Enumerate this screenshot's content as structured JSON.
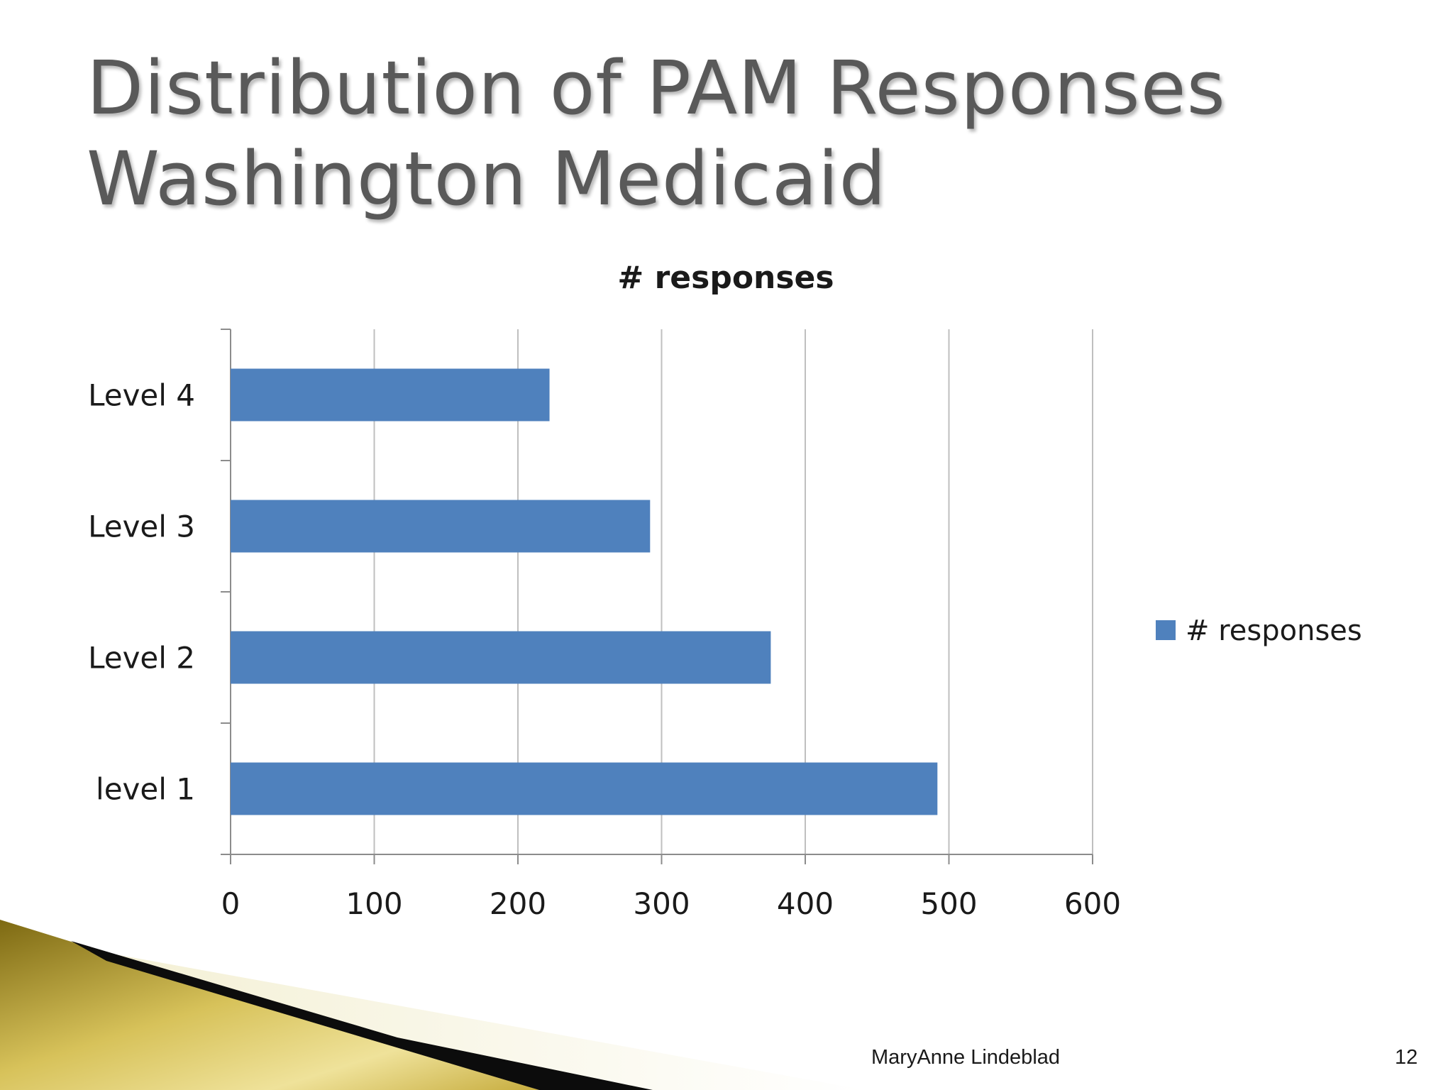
{
  "slide": {
    "title_line1": "Distribution of PAM Responses",
    "title_line2": "Washington Medicaid",
    "author": "MaryAnne Lindeblad",
    "page_number": "12"
  },
  "colors": {
    "bar": "#4f81bd",
    "grid": "#bfbfbf",
    "title": "#595959",
    "gold_dark": "#8a7418",
    "gold_light": "#e9d77a"
  },
  "chart_data": {
    "type": "bar",
    "orientation": "horizontal",
    "title": "# responses",
    "categories": [
      "Level 4",
      "Level 3",
      "Level 2",
      "level 1"
    ],
    "series": [
      {
        "name": "# responses",
        "values": [
          222,
          292,
          376,
          492
        ]
      }
    ],
    "xlim": [
      0,
      600
    ],
    "xticks": [
      "0",
      "100",
      "200",
      "300",
      "400",
      "500",
      "600"
    ],
    "xlabel": "",
    "ylabel": "",
    "grid": true,
    "legend": {
      "position": "right",
      "label": "# responses"
    }
  }
}
